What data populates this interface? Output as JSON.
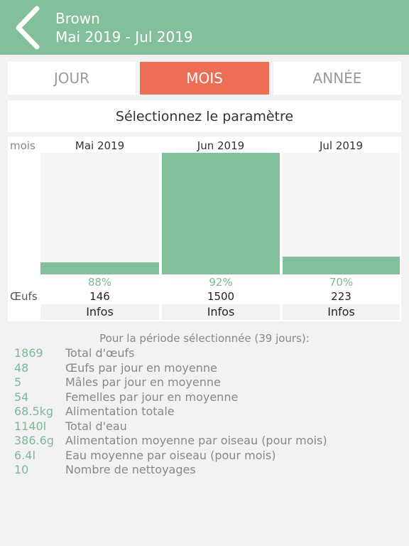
{
  "header": {
    "title": "Brown",
    "subtitle": "Mai 2019 - Jul 2019",
    "back_icon": "chevron-left-icon"
  },
  "tabs": [
    {
      "label": "JOUR",
      "active": false
    },
    {
      "label": "MOIS",
      "active": true
    },
    {
      "label": "ANNÉE",
      "active": false
    }
  ],
  "parameter": {
    "label": "Sélectionnez le paramètre"
  },
  "chart": {
    "unit_label": "mois",
    "row_label": "Œufs",
    "columns": [
      {
        "label": "Mai 2019",
        "percent": "88%",
        "eggs": "146",
        "info": "Infos"
      },
      {
        "label": "Jun 2019",
        "percent": "92%",
        "eggs": "1500",
        "info": "Infos"
      },
      {
        "label": "Jul 2019",
        "percent": "70%",
        "eggs": "223",
        "info": "Infos"
      }
    ]
  },
  "chart_data": {
    "type": "bar",
    "categories": [
      "Mai 2019",
      "Jun 2019",
      "Jul 2019"
    ],
    "values": [
      146,
      1500,
      223
    ],
    "ylim": [
      0,
      1500
    ],
    "bar_color": "#82bf9a"
  },
  "summary": {
    "heading": "Pour la période sélectionnée (39 jours):",
    "items": [
      {
        "value": "1869",
        "label": "Total d'œufs"
      },
      {
        "value": "48",
        "label": "Œufs par jour en moyenne"
      },
      {
        "value": "5",
        "label": "Mâles par jour en moyenne"
      },
      {
        "value": "54",
        "label": "Femelles par jour en moyenne"
      },
      {
        "value": "68.5kg",
        "label": "Alimentation totale"
      },
      {
        "value": "1140l",
        "label": "Total d'eau"
      },
      {
        "value": "386.6g",
        "label": "Alimentation moyenne par oiseau (pour mois)"
      },
      {
        "value": "6.4l",
        "label": "Eau moyenne par oiseau (pour mois)"
      },
      {
        "value": "10",
        "label": "Nombre de nettoyages"
      }
    ]
  },
  "colors": {
    "header": "#82bf9a",
    "active_tab": "#ee6e55",
    "accent_green": "#7db896"
  }
}
